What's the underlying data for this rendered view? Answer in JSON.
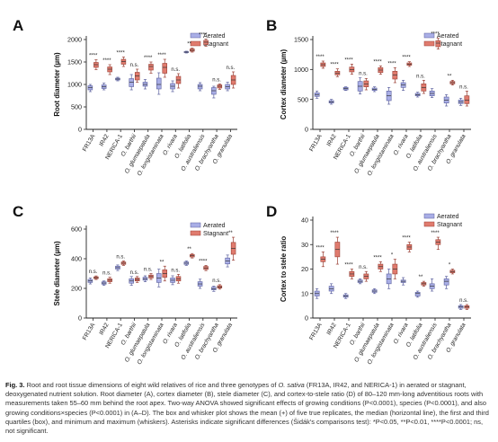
{
  "figure": {
    "colors": {
      "aerated": "#a9aee6",
      "stagnant": "#e07b6e",
      "aerated_edge": "#5a5f9e",
      "stagnant_edge": "#9a3e33"
    },
    "genotypes": [
      "FR13A",
      "IR42",
      "NERICA-1",
      "O. barthii",
      "O. glumaepatula",
      "O. longistaminata",
      "O. rivara",
      "O. latifolia",
      "O. australiensis",
      "O. brachyantha",
      "O. granulata"
    ],
    "italic_from": 3,
    "legend": [
      "Aerated",
      "Stagnant"
    ]
  },
  "chart_data": [
    {
      "type": "box",
      "panel": "A",
      "ylabel": "Root diameter (µm)",
      "ylim": [
        0,
        2000
      ],
      "yticks": [
        0,
        500,
        1000,
        1500,
        2000
      ],
      "categories": [
        "FR13A",
        "IR42",
        "NERICA-1",
        "O. barthii",
        "O. glumaepatula",
        "O. longistaminata",
        "O. rivara",
        "O. latifolia",
        "O. australiensis",
        "O. brachyantha",
        "O. granulata"
      ],
      "series": [
        {
          "name": "Aerated",
          "boxes": [
            [
              840,
              880,
              930,
              970,
              1000
            ],
            [
              880,
              910,
              950,
              990,
              1030
            ],
            [
              1080,
              1100,
              1120,
              1140,
              1160
            ],
            [
              880,
              950,
              1050,
              1130,
              1220
            ],
            [
              900,
              960,
              1000,
              1050,
              1110
            ],
            [
              780,
              900,
              1000,
              1140,
              1260
            ],
            [
              840,
              900,
              960,
              1020,
              1080
            ],
            [
              1700,
              1710,
              1720,
              1730,
              1740
            ],
            [
              860,
              900,
              960,
              1000,
              1040
            ],
            [
              700,
              780,
              860,
              930,
              960
            ],
            [
              860,
              900,
              950,
              1000,
              1050
            ]
          ]
        },
        {
          "name": "Stagnant",
          "boxes": [
            [
              1330,
              1380,
              1440,
              1490,
              1550
            ],
            [
              1220,
              1280,
              1340,
              1390,
              1440
            ],
            [
              1400,
              1450,
              1510,
              1560,
              1610
            ],
            [
              1050,
              1100,
              1190,
              1270,
              1340
            ],
            [
              1250,
              1320,
              1400,
              1450,
              1500
            ],
            [
              1160,
              1250,
              1380,
              1470,
              1560
            ],
            [
              920,
              1020,
              1100,
              1180,
              1240
            ],
            [
              1720,
              1740,
              1760,
              1790,
              1810
            ],
            [
              1850,
              1890,
              1940,
              1980,
              2010
            ],
            [
              890,
              920,
              960,
              990,
              1010
            ],
            [
              920,
              1000,
              1100,
              1200,
              1280
            ]
          ]
        }
      ],
      "significance": [
        "****",
        "****",
        "****",
        "n.s.",
        "****",
        "****",
        "n.s.",
        "**",
        "****",
        "n.s.",
        "n.s."
      ]
    },
    {
      "type": "box",
      "panel": "B",
      "ylabel": "Cortex diameter (µm)",
      "ylim": [
        0,
        1500
      ],
      "yticks": [
        0,
        500,
        1000,
        1500
      ],
      "categories": [
        "FR13A",
        "IR42",
        "NERICA-1",
        "O. barthii",
        "O. glumaepatula",
        "O. longistaminata",
        "O. rivara",
        "O. latifolia",
        "O. australiensis",
        "O. brachyantha",
        "O. granulata"
      ],
      "series": [
        {
          "name": "Aerated",
          "boxes": [
            [
              520,
              550,
              580,
              610,
              640
            ],
            [
              420,
              440,
              460,
              480,
              500
            ],
            [
              650,
              660,
              680,
              700,
              710
            ],
            [
              590,
              640,
              720,
              800,
              860
            ],
            [
              630,
              650,
              670,
              690,
              710
            ],
            [
              420,
              480,
              560,
              640,
              700
            ],
            [
              650,
              700,
              740,
              780,
              820
            ],
            [
              540,
              560,
              580,
              600,
              620
            ],
            [
              530,
              560,
              600,
              640,
              680
            ],
            [
              390,
              440,
              490,
              540,
              580
            ],
            [
              400,
              430,
              460,
              490,
              520
            ]
          ]
        },
        {
          "name": "Stagnant",
          "boxes": [
            [
              1020,
              1050,
              1080,
              1110,
              1140
            ],
            [
              880,
              910,
              940,
              970,
              1010
            ],
            [
              920,
              960,
              1000,
              1040,
              1090
            ],
            [
              660,
              710,
              760,
              810,
              850
            ],
            [
              920,
              950,
              990,
              1030,
              1060
            ],
            [
              780,
              840,
              910,
              970,
              1030
            ],
            [
              1050,
              1070,
              1090,
              1110,
              1130
            ],
            [
              600,
              640,
              700,
              760,
              820
            ],
            [
              1340,
              1380,
              1440,
              1480,
              1520
            ],
            [
              740,
              760,
              780,
              800,
              820
            ],
            [
              390,
              430,
              490,
              560,
              640
            ]
          ]
        }
      ],
      "significance": [
        "****",
        "****",
        "****",
        "n.s.",
        "****",
        "****",
        "****",
        "n.s.",
        "****",
        "**",
        "n.s."
      ]
    },
    {
      "type": "box",
      "panel": "C",
      "ylabel": "Stele diameter (µm)",
      "ylim": [
        0,
        600
      ],
      "yticks": [
        0,
        200,
        400,
        600
      ],
      "categories": [
        "FR13A",
        "IR42",
        "NERICA-1",
        "O. barthii",
        "O. glumaepatula",
        "O. longistaminata",
        "O. rivara",
        "O. latifolia",
        "O. australiensis",
        "O. brachyantha",
        "O. granulata"
      ],
      "series": [
        {
          "name": "Aerated",
          "boxes": [
            [
              230,
              240,
              250,
              260,
              270
            ],
            [
              220,
              228,
              236,
              244,
              250
            ],
            [
              320,
              330,
              340,
              350,
              358
            ],
            [
              220,
              235,
              250,
              265,
              280
            ],
            [
              245,
              255,
              265,
              275,
              285
            ],
            [
              210,
              240,
              270,
              300,
              330
            ],
            [
              225,
              240,
              255,
              270,
              285
            ],
            [
              355,
              362,
              370,
              378,
              385
            ],
            [
              200,
              215,
              230,
              245,
              262
            ],
            [
              180,
              190,
              198,
              208,
              215
            ],
            [
              345,
              365,
              385,
              405,
              425
            ]
          ]
        },
        {
          "name": "Stagnant",
          "boxes": [
            [
              260,
              266,
              272,
              278,
              284
            ],
            [
              235,
              245,
              255,
              265,
              275
            ],
            [
              355,
              362,
              370,
              378,
              385
            ],
            [
              240,
              250,
              260,
              270,
              280
            ],
            [
              260,
              270,
              280,
              290,
              300
            ],
            [
              250,
              275,
              300,
              325,
              350
            ],
            [
              235,
              250,
              265,
              280,
              295
            ],
            [
              405,
              412,
              420,
              428,
              435
            ],
            [
              320,
              328,
              338,
              348,
              355
            ],
            [
              195,
              202,
              210,
              218,
              225
            ],
            [
              390,
              430,
              470,
              510,
              545
            ]
          ]
        }
      ],
      "significance": [
        "n.s.",
        "n.s.",
        "n.s.",
        "n.s.",
        "n.s.",
        "**",
        "n.s.",
        "**",
        "****",
        "n.s.",
        "**"
      ]
    },
    {
      "type": "box",
      "panel": "D",
      "ylabel": "Cortex to stele ratio",
      "ylim": [
        0,
        40
      ],
      "yticks": [
        0,
        10,
        20,
        30,
        40
      ],
      "categories": [
        "FR13A",
        "IR42",
        "NERICA-1",
        "O. barthii",
        "O. glumaepatula",
        "O. longistaminata",
        "O. rivara",
        "O. latifolia",
        "O. australiensis",
        "O. brachyantha",
        "O. granulata"
      ],
      "series": [
        {
          "name": "Aerated",
          "boxes": [
            [
              8,
              9,
              10,
              11,
              12
            ],
            [
              10,
              11,
              12,
              13,
              14
            ],
            [
              8,
              8.5,
              9,
              9.5,
              10
            ],
            [
              14,
              14.5,
              15,
              15.5,
              16
            ],
            [
              10,
              10.5,
              11,
              11.5,
              12
            ],
            [
              12,
              14,
              16,
              18,
              20
            ],
            [
              13.5,
              14.5,
              15,
              15.5,
              16.5
            ],
            [
              8.5,
              9,
              10,
              10.5,
              11
            ],
            [
              11,
              12,
              13,
              14,
              16
            ],
            [
              12,
              13.5,
              15,
              16,
              17
            ],
            [
              3.5,
              4,
              4.5,
              5,
              5.5
            ]
          ]
        },
        {
          "name": "Stagnant",
          "boxes": [
            [
              21,
              23,
              24,
              25,
              27
            ],
            [
              22,
              25,
              28,
              31,
              33
            ],
            [
              16,
              17,
              18,
              19,
              20
            ],
            [
              15,
              16,
              17,
              18,
              19
            ],
            [
              19,
              20,
              21,
              22,
              23
            ],
            [
              16,
              18,
              20,
              22,
              24
            ],
            [
              27,
              28,
              29,
              30,
              31
            ],
            [
              13,
              13.5,
              14,
              14.5,
              15
            ],
            [
              28,
              30,
              31,
              32,
              33
            ],
            [
              18,
              18.5,
              19,
              19.5,
              20
            ],
            [
              3.5,
              4,
              4.5,
              5,
              5.5
            ]
          ]
        }
      ],
      "significance": [
        "****",
        "****",
        "****",
        "n.s.",
        "****",
        "*",
        "****",
        "**",
        "****",
        "*",
        "n.s."
      ]
    }
  ],
  "caption": {
    "label": "Fig. 3.",
    "text1": " Root and root tissue dimensions of eight wild relatives of rice and three genotypes of ",
    "species": "O. sativa",
    "text2": " (FR13A, IR42, and NERICA-1) in aerated or stagnant, deoxygenated nutrient solution. Root diameter (A), cortex diameter (B), stele diameter (C), and cortex-to-stele ratio (D) of 80–120 mm-long adventitious roots with measurements taken 55–60 mm behind the root apex. Two-way ANOVA showed significant effects of growing conditions (P<0.0001), species (P<0.0001), and also growing conditions×species (P<0.0001) in (A–D). The box and whisker plot shows the mean (+) of five true replicates, the median (horizontal line), the first and third quartiles (box), and minimum and maximum (whiskers). Asterisks indicate significant differences (Šidák's comparisons test): *P<0.05, **P<0.01, ****P<0.0001; ns, not significant."
  }
}
